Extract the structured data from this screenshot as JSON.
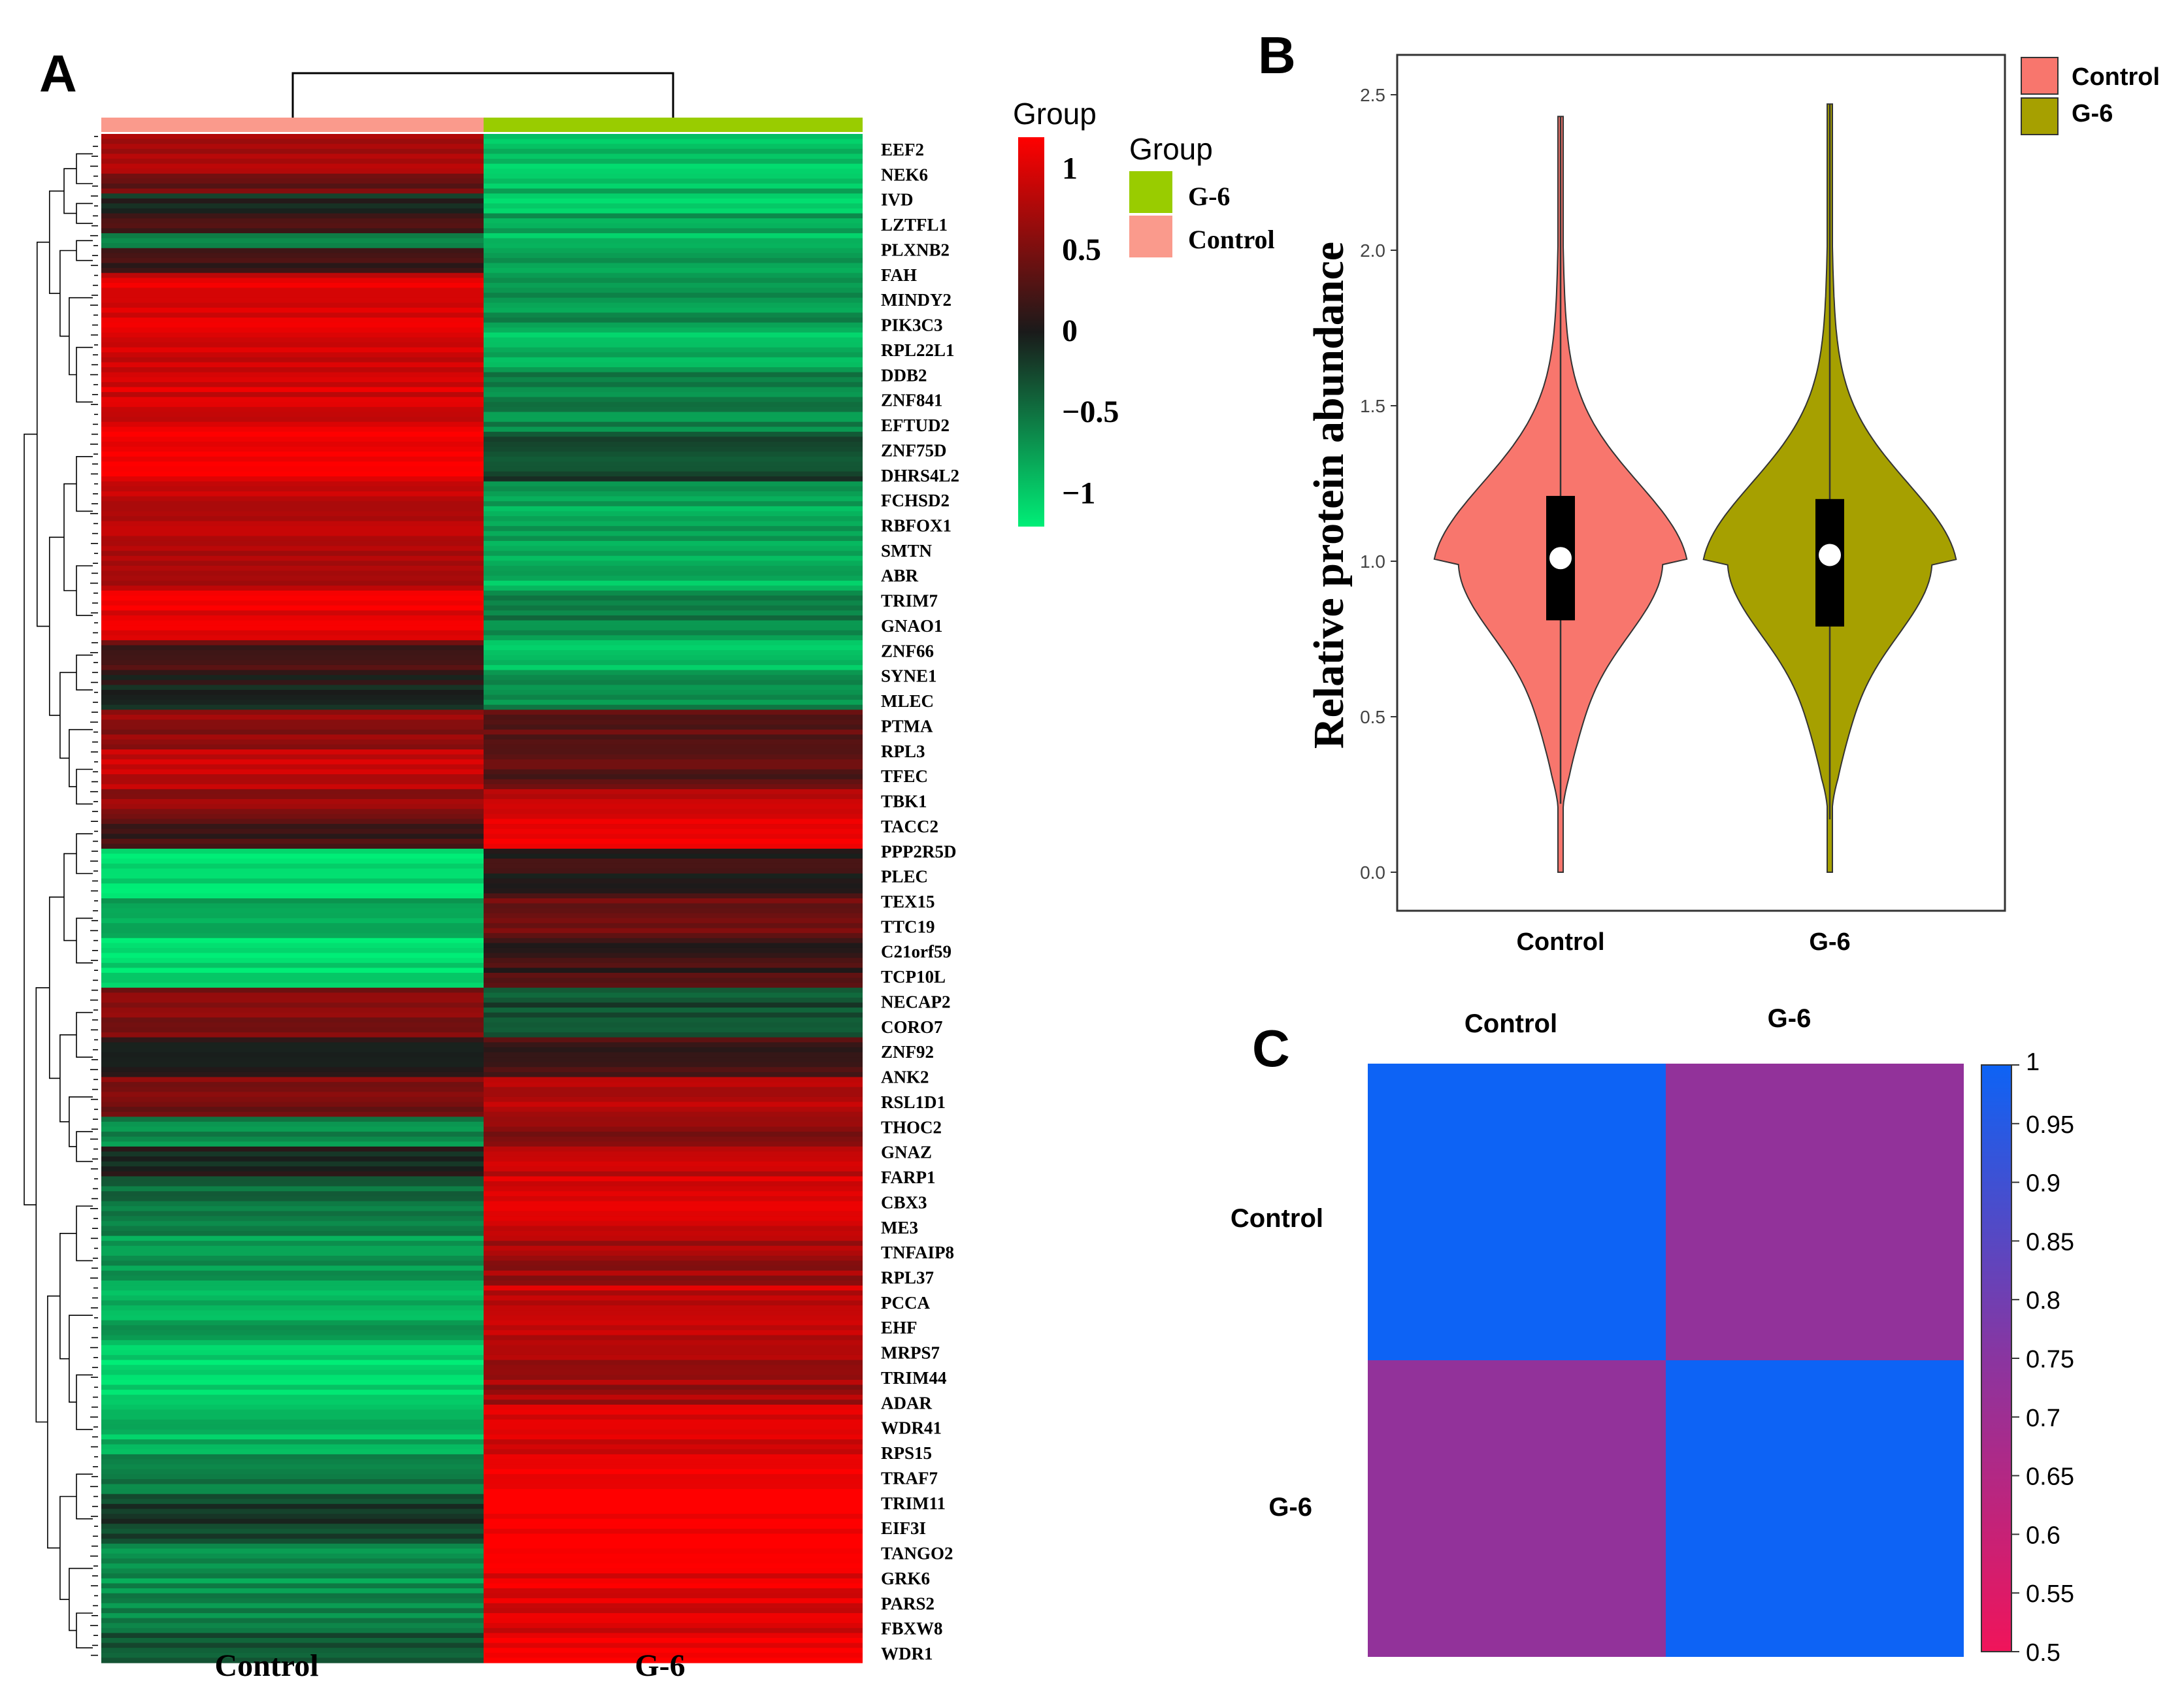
{
  "chart_data": [
    {
      "panel": "A",
      "type": "heatmap",
      "panel_label": "A",
      "columns": [
        "Control",
        "G-6"
      ],
      "group_annotation": {
        "title": "Group",
        "levels": [
          {
            "name": "G-6",
            "color": "#99cc00"
          },
          {
            "name": "Control",
            "color": "#fa9a8c"
          }
        ]
      },
      "colorbar": {
        "title": "Group",
        "ticks": [
          "1",
          "0.5",
          "0",
          "−0.5",
          "−1"
        ],
        "tick_values": [
          1,
          0.5,
          0,
          -0.5,
          -1
        ],
        "colors": [
          "#ff0000",
          "#1a1a1a",
          "#00ee77"
        ]
      },
      "gene_labels": [
        "EEF2",
        "NEK6",
        "IVD",
        "LZTFL1",
        "PLXNB2",
        "FAH",
        "MINDY2",
        "PIK3C3",
        "RPL22L1",
        "DDB2",
        "ZNF841",
        "EFTUD2",
        "ZNF75D",
        "DHRS4L2",
        "FCHSD2",
        "RBFOX1",
        "SMTN",
        "ABR",
        "TRIM7",
        "GNAO1",
        "ZNF66",
        "SYNE1",
        "MLEC",
        "PTMA",
        "RPL3",
        "TFEC",
        "TBK1",
        "TACC2",
        "PPP2R5D",
        "PLEC",
        "TEX15",
        "TTC19",
        "C21orf59",
        "TCP10L",
        "NECAP2",
        "CORO7",
        "ZNF92",
        "ANK2",
        "RSL1D1",
        "THOC2",
        "GNAZ",
        "FARP1",
        "CBX3",
        "ME3",
        "TNFAIP8",
        "RPL37",
        "PCCA",
        "EHF",
        "MRPS7",
        "TRIM44",
        "ADAR",
        "WDR41",
        "RPS15",
        "TRAF7",
        "TRIM11",
        "EIF3I",
        "TANGO2",
        "GRK6",
        "PARS2",
        "FBXW8",
        "WDR1"
      ],
      "blocks": [
        {
          "rows": 8,
          "control": 0.8,
          "g6": -0.95
        },
        {
          "rows": 4,
          "control": 0.4,
          "g6": -0.9
        },
        {
          "rows": 4,
          "control": -0.1,
          "g6": -1.0
        },
        {
          "rows": 4,
          "control": 0.3,
          "g6": -0.8
        },
        {
          "rows": 3,
          "control": -0.5,
          "g6": -1.0
        },
        {
          "rows": 5,
          "control": 0.2,
          "g6": -0.7
        },
        {
          "rows": 10,
          "control": 1.0,
          "g6": -0.7
        },
        {
          "rows": 10,
          "control": 1.0,
          "g6": -0.9
        },
        {
          "rows": 12,
          "control": 1.0,
          "g6": -0.6
        },
        {
          "rows": 10,
          "control": 1.2,
          "g6": -0.2
        },
        {
          "rows": 12,
          "control": 0.9,
          "g6": -0.8
        },
        {
          "rows": 10,
          "control": 0.7,
          "g6": -0.9
        },
        {
          "rows": 10,
          "control": 1.1,
          "g6": -0.6
        },
        {
          "rows": 6,
          "control": 0.3,
          "g6": -1.0
        },
        {
          "rows": 8,
          "control": 0.0,
          "g6": -0.6
        },
        {
          "rows": 8,
          "control": 0.6,
          "g6": 0.4
        },
        {
          "rows": 8,
          "control": 0.9,
          "g6": 0.3
        },
        {
          "rows": 6,
          "control": 0.6,
          "g6": 0.9
        },
        {
          "rows": 6,
          "control": 0.2,
          "g6": 1.1
        },
        {
          "rows": 10,
          "control": -1.1,
          "g6": 0.1
        },
        {
          "rows": 8,
          "control": -0.8,
          "g6": 0.5
        },
        {
          "rows": 10,
          "control": -1.1,
          "g6": 0.2
        },
        {
          "rows": 10,
          "control": 0.6,
          "g6": -0.3
        },
        {
          "rows": 8,
          "control": 0.1,
          "g6": 0.2
        },
        {
          "rows": 8,
          "control": 0.5,
          "g6": 0.8
        },
        {
          "rows": 6,
          "control": -0.6,
          "g6": 0.6
        },
        {
          "rows": 6,
          "control": 0.0,
          "g6": 0.9
        },
        {
          "rows": 12,
          "control": -0.5,
          "g6": 1.0
        },
        {
          "rows": 10,
          "control": -0.7,
          "g6": 0.7
        },
        {
          "rows": 12,
          "control": -0.8,
          "g6": 0.9
        },
        {
          "rows": 12,
          "control": -1.1,
          "g6": 0.7
        },
        {
          "rows": 10,
          "control": -0.9,
          "g6": 1.0
        },
        {
          "rows": 8,
          "control": -0.5,
          "g6": 1.2
        },
        {
          "rows": 10,
          "control": -0.2,
          "g6": 1.2
        },
        {
          "rows": 10,
          "control": -0.7,
          "g6": 1.1
        },
        {
          "rows": 8,
          "control": -0.6,
          "g6": 1.0
        },
        {
          "rows": 6,
          "control": -0.3,
          "g6": 1.2
        }
      ]
    },
    {
      "panel": "B",
      "type": "violin",
      "panel_label": "B",
      "ylabel": "Relative protein abundance",
      "categories": [
        "Control",
        "G-6"
      ],
      "yticks": [
        "0.0",
        "0.5",
        "1.0",
        "1.5",
        "2.0",
        "2.5"
      ],
      "ylim": [
        0,
        2.6
      ],
      "legend": [
        {
          "name": "Control",
          "color": "#f8766d"
        },
        {
          "name": "G-6",
          "color": "#a6a000"
        }
      ],
      "series": [
        {
          "name": "Control",
          "min": 0.0,
          "q1": 0.81,
          "median": 1.01,
          "q3": 1.21,
          "max": 2.43,
          "whisker_low": 0.22,
          "mode": 1.0
        },
        {
          "name": "G-6",
          "min": 0.0,
          "q1": 0.79,
          "median": 1.02,
          "q3": 1.2,
          "max": 2.47,
          "whisker_low": 0.17,
          "mode": 1.0
        }
      ]
    },
    {
      "panel": "C",
      "type": "heatmap",
      "panel_label": "C",
      "columns": [
        "Control",
        "G-6"
      ],
      "rows": [
        "Control",
        "G-6"
      ],
      "values": [
        [
          1.0,
          0.73
        ],
        [
          0.73,
          1.0
        ]
      ],
      "colorbar": {
        "ticks": [
          "1",
          "0.95",
          "0.9",
          "0.85",
          "0.8",
          "0.75",
          "0.7",
          "0.65",
          "0.6",
          "0.55",
          "0.5"
        ],
        "tick_values": [
          1.0,
          0.95,
          0.9,
          0.85,
          0.8,
          0.75,
          0.7,
          0.65,
          0.6,
          0.55,
          0.5
        ],
        "range": [
          0.5,
          1.0
        ],
        "colors": [
          "#f0145a",
          "#8a35a0",
          "#0d63f5"
        ]
      }
    }
  ]
}
